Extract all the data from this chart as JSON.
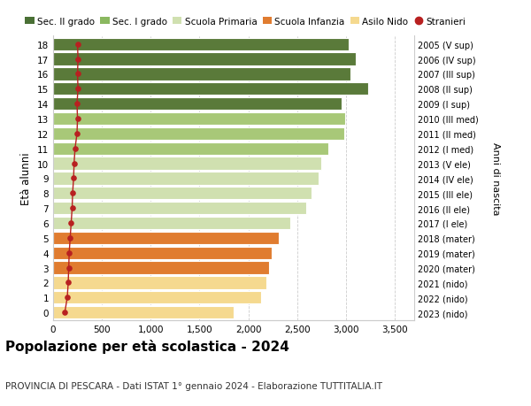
{
  "ages": [
    0,
    1,
    2,
    3,
    4,
    5,
    6,
    7,
    8,
    9,
    10,
    11,
    12,
    13,
    14,
    15,
    16,
    17,
    18
  ],
  "right_labels": [
    "2023 (nido)",
    "2022 (nido)",
    "2021 (nido)",
    "2020 (mater)",
    "2019 (mater)",
    "2018 (mater)",
    "2017 (I ele)",
    "2016 (II ele)",
    "2015 (III ele)",
    "2014 (IV ele)",
    "2013 (V ele)",
    "2012 (I med)",
    "2011 (II med)",
    "2010 (III med)",
    "2009 (I sup)",
    "2008 (II sup)",
    "2007 (III sup)",
    "2006 (IV sup)",
    "2005 (V sup)"
  ],
  "bar_values": [
    1850,
    2130,
    2190,
    2210,
    2240,
    2310,
    2430,
    2590,
    2650,
    2720,
    2750,
    2820,
    2980,
    2990,
    2960,
    3230,
    3050,
    3100,
    3030
  ],
  "stranieri_values": [
    120,
    145,
    155,
    160,
    165,
    175,
    185,
    195,
    200,
    210,
    215,
    225,
    245,
    250,
    245,
    255,
    250,
    255,
    250
  ],
  "bar_colors": [
    "#f5d98f",
    "#f5d98f",
    "#f5d98f",
    "#e07c30",
    "#e07c30",
    "#e07c30",
    "#d0e0b0",
    "#d0e0b0",
    "#d0e0b0",
    "#d0e0b0",
    "#d0e0b0",
    "#a8c878",
    "#a8c878",
    "#a8c878",
    "#5a7a3a",
    "#5a7a3a",
    "#5a7a3a",
    "#5a7a3a",
    "#5a7a3a"
  ],
  "legend_labels": [
    "Sec. II grado",
    "Sec. I grado",
    "Scuola Primaria",
    "Scuola Infanzia",
    "Asilo Nido",
    "Stranieri"
  ],
  "legend_colors": [
    "#4a7035",
    "#8ab860",
    "#d0e0b0",
    "#e07c30",
    "#f5d98f",
    "#b82020"
  ],
  "ylabel": "Età alunni",
  "right_ylabel": "Anni di nascita",
  "title": "Popolazione per età scolastica - 2024",
  "subtitle": "PROVINCIA DI PESCARA - Dati ISTAT 1° gennaio 2024 - Elaborazione TUTTITALIA.IT",
  "xlim": [
    0,
    3700
  ],
  "xticks": [
    0,
    500,
    1000,
    1500,
    2000,
    2500,
    3000,
    3500
  ],
  "xtick_labels": [
    "0",
    "500",
    "1,000",
    "1,500",
    "2,000",
    "2,500",
    "3,000",
    "3,500"
  ],
  "background_color": "#ffffff",
  "grid_color": "#cccccc",
  "stranieri_color": "#b82020",
  "bar_height": 0.85
}
